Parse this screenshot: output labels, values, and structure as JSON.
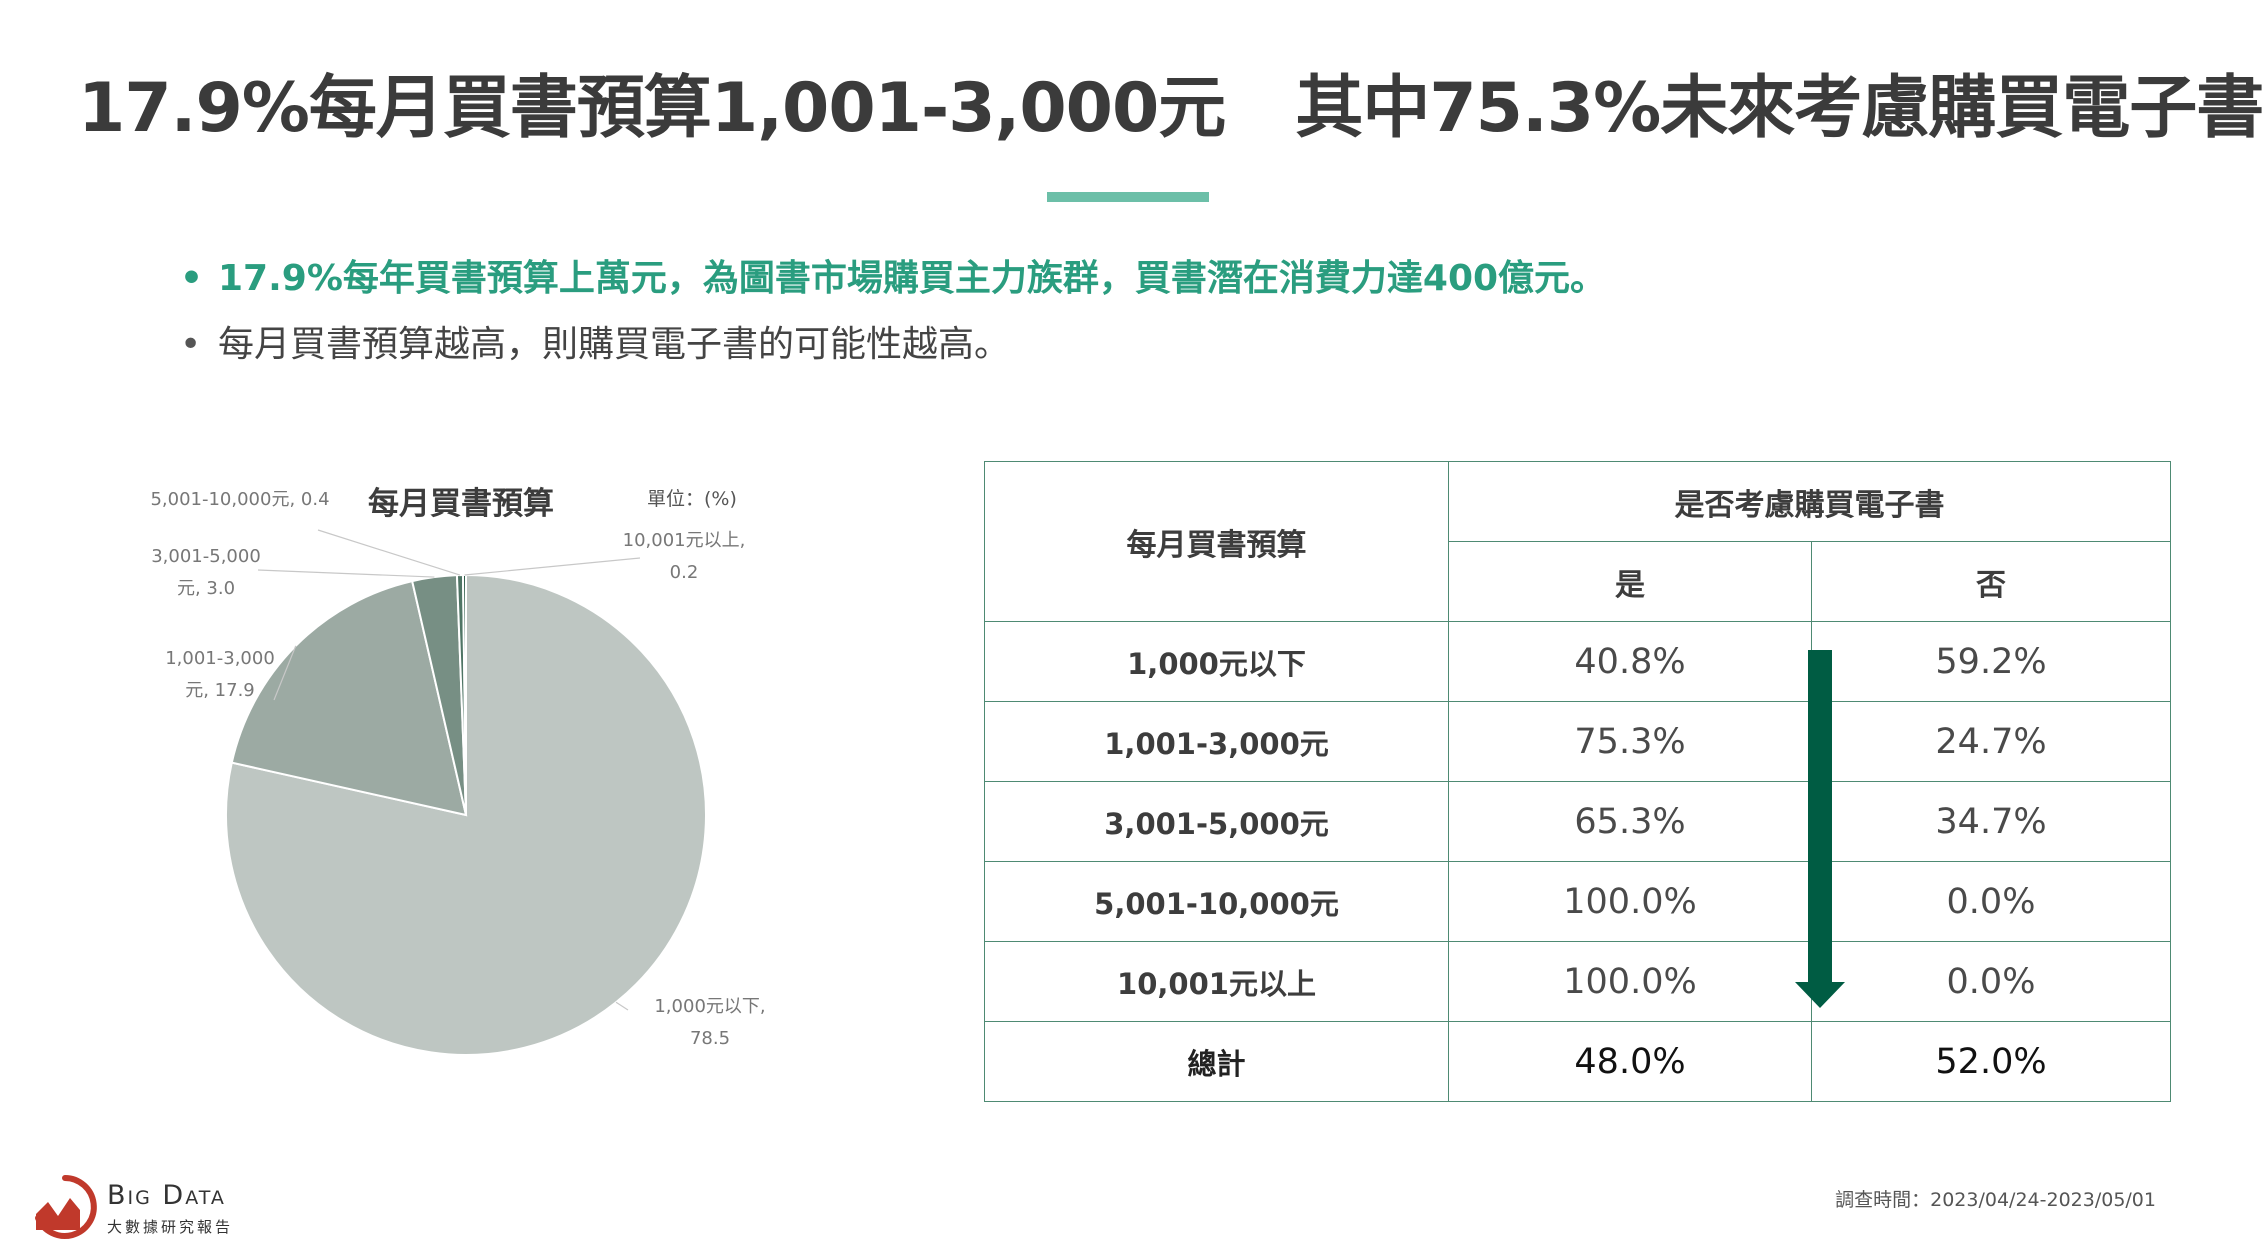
{
  "title": {
    "part1": "17.9%每月買書預算1,001-3,000元",
    "part2": "其中75.3%未來考慮購買電子書"
  },
  "bullets": [
    "17.9%每年買書預算上萬元，為圖書市場購買主力族群，買書潛在消費力達400億元。",
    "每月買書預算越高，則購買電子書的可能性越高。"
  ],
  "colors": {
    "accent": "#6cbfa8",
    "highlight_text": "#2a9d7f",
    "table_border": "#4e8a73",
    "arrow": "#005c43"
  },
  "chart_data": {
    "type": "pie",
    "title": "每月買書預算",
    "unit_label": "單位：(%)",
    "slices": [
      {
        "label": "1,000元以下",
        "value": 78.5,
        "color": "#bec6c2",
        "label_text": [
          "1,000元以下,",
          "78.5"
        ]
      },
      {
        "label": "1,001-3,000元",
        "value": 17.9,
        "color": "#9caaa3",
        "label_text": [
          "1,001-3,000",
          "元, 17.9"
        ]
      },
      {
        "label": "3,001-5,000元",
        "value": 3.0,
        "color": "#778f84",
        "label_text": [
          "3,001-5,000",
          "元, 3.0"
        ]
      },
      {
        "label": "5,001-10,000元",
        "value": 0.4,
        "color": "#4f7565",
        "label_text": [
          "5,001-10,000元, 0.4"
        ]
      },
      {
        "label": "10,001元以上",
        "value": 0.2,
        "color": "#2d5c48",
        "label_text": [
          "10,001元以上,",
          "0.2"
        ]
      }
    ]
  },
  "table": {
    "header_budget": "每月買書預算",
    "header_group": "是否考慮購買電子書",
    "header_yes": "是",
    "header_no": "否",
    "rows": [
      {
        "budget": "1,000元以下",
        "yes": "40.8%",
        "no": "59.2%"
      },
      {
        "budget": "1,001-3,000元",
        "yes": "75.3%",
        "no": "24.7%"
      },
      {
        "budget": "3,001-5,000元",
        "yes": "65.3%",
        "no": "34.7%"
      },
      {
        "budget": "5,001-10,000元",
        "yes": "100.0%",
        "no": "0.0%"
      },
      {
        "budget": "10,001元以上",
        "yes": "100.0%",
        "no": "0.0%"
      }
    ],
    "total": {
      "budget": "總計",
      "yes": "48.0%",
      "no": "52.0%"
    }
  },
  "footer": {
    "brand": "Big Data",
    "brand_sub": "大數據研究報告",
    "survey_time": "調查時間：2023/04/24-2023/05/01",
    "logo_icon": "trend-chart-logo-icon"
  }
}
